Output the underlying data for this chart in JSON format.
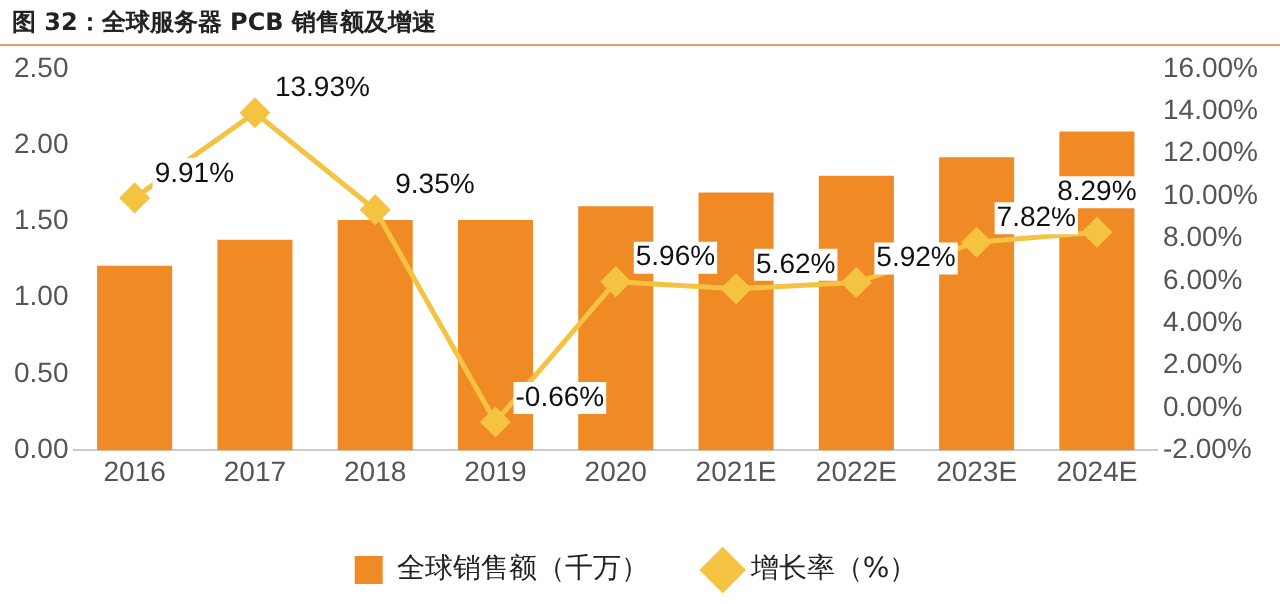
{
  "chart_data": {
    "type": "bar",
    "title": "图 32：全球服务器 PCB 销售额及增速",
    "categories": [
      "2016",
      "2017",
      "2018",
      "2019",
      "2020",
      "2021E",
      "2022E",
      "2023E",
      "2024E"
    ],
    "series": [
      {
        "name": "全球销售额（千万）",
        "color": "#f08a24",
        "values": [
          1.21,
          1.38,
          1.51,
          1.51,
          1.6,
          1.69,
          1.8,
          1.92,
          2.09
        ]
      },
      {
        "name": "增长率（%）",
        "type": "line",
        "axis": "y2",
        "color": "#f5c342",
        "marker": "diamond",
        "values": [
          9.91,
          13.93,
          9.35,
          -0.66,
          5.96,
          5.62,
          5.92,
          7.82,
          8.29
        ],
        "value_labels": [
          "9.91%",
          "13.93%",
          "9.35%",
          "-0.66%",
          "5.96%",
          "5.62%",
          "5.92%",
          "7.82%",
          "8.29%"
        ]
      }
    ],
    "ylim": [
      0,
      2.5
    ],
    "yticks": [
      {
        "value": 0,
        "label": "0.00"
      },
      {
        "value": 0.5,
        "label": "0.50"
      },
      {
        "value": 1,
        "label": "1.00"
      },
      {
        "value": 1.5,
        "label": "1.50"
      },
      {
        "value": 2,
        "label": "2.00"
      },
      {
        "value": 2.5,
        "label": "2.50"
      }
    ],
    "y2lim": [
      -2,
      16
    ],
    "y2ticks": [
      {
        "value": -2,
        "label": "-2.00%"
      },
      {
        "value": 0,
        "label": "0.00%"
      },
      {
        "value": 2,
        "label": "2.00%"
      },
      {
        "value": 4,
        "label": "4.00%"
      },
      {
        "value": 6,
        "label": "6.00%"
      },
      {
        "value": 8,
        "label": "8.00%"
      },
      {
        "value": 10,
        "label": "10.00%"
      },
      {
        "value": 12,
        "label": "12.00%"
      },
      {
        "value": 14,
        "label": "14.00%"
      },
      {
        "value": 16,
        "label": "16.00%"
      }
    ],
    "grid": false,
    "legend": "bottom"
  }
}
